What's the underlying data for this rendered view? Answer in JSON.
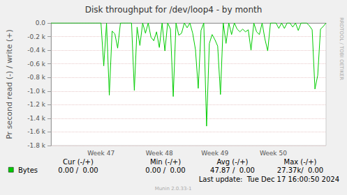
{
  "chart_data": {
    "type": "line",
    "title": "Disk throughput for /dev/loop4 - by month",
    "ylabel": "Pr second read (-) / write (+)",
    "x": [
      null,
      null,
      null,
      null,
      null,
      null,
      null,
      null,
      null,
      null,
      null,
      null,
      null,
      null,
      null,
      null,
      null,
      null,
      "Week 47",
      null,
      null,
      null,
      null,
      null,
      null,
      null,
      null,
      null,
      null,
      null,
      null,
      null,
      null,
      null,
      null,
      null,
      null,
      null,
      null,
      "Week 48",
      null,
      null,
      null,
      null,
      null,
      null,
      null,
      null,
      null,
      null,
      null,
      null,
      null,
      null,
      null,
      null,
      null,
      null,
      null,
      "Week 49",
      null,
      null,
      null,
      null,
      null,
      null,
      null,
      null,
      null,
      null,
      null,
      null,
      null,
      null,
      null,
      null,
      null,
      null,
      null,
      null,
      "Week 50",
      null,
      null,
      null,
      null,
      null,
      null,
      null,
      null,
      null,
      null,
      null,
      null,
      null,
      null,
      null,
      null,
      null,
      null,
      null
    ],
    "series": [
      {
        "name": "Bytes",
        "color": "#00cc00",
        "values": [
          0,
          0,
          0,
          0,
          0,
          0,
          0,
          0,
          0,
          0,
          0,
          0,
          0,
          0,
          0,
          0,
          0,
          0,
          0,
          -630,
          0,
          -1060,
          -120,
          -160,
          -370,
          0,
          0,
          0,
          0,
          0,
          -990,
          -60,
          -330,
          0,
          -150,
          0,
          -210,
          -260,
          -130,
          -360,
          0,
          -410,
          0,
          -90,
          -1080,
          0,
          -180,
          -150,
          0,
          -70,
          0,
          -150,
          -390,
          -960,
          -110,
          0,
          -1515,
          -300,
          -170,
          -245,
          -340,
          -1050,
          0,
          -300,
          0,
          -170,
          0,
          -90,
          -130,
          -90,
          -130,
          -100,
          -400,
          0,
          -130,
          -170,
          0,
          -235,
          -410,
          0,
          0,
          0,
          -80,
          0,
          -80,
          0,
          0,
          -60,
          0,
          -110,
          0,
          0,
          0,
          -40,
          -100,
          -970,
          -770,
          -90,
          -50,
          0
        ]
      }
    ],
    "ylim": [
      -1800,
      0
    ],
    "yticks": [
      {
        "value": -1800,
        "label": "-1.8 k"
      },
      {
        "value": -1600,
        "label": "-1.6 k"
      },
      {
        "value": -1400,
        "label": "-1.4 k"
      },
      {
        "value": -1200,
        "label": "-1.2 k"
      },
      {
        "value": -1000,
        "label": "-1.0 k"
      },
      {
        "value": -800,
        "label": "-0.8 k"
      },
      {
        "value": -600,
        "label": "-0.6 k"
      },
      {
        "value": -400,
        "label": "-0.4 k"
      },
      {
        "value": -200,
        "label": "-0.2 k"
      },
      {
        "value": 0,
        "label": "0.0"
      }
    ],
    "grid": true,
    "stats": {
      "headers": [
        "Cur (-/+)",
        "Min (-/+)",
        "Avg (-/+)",
        "Max (-/+)"
      ],
      "values": [
        "0.00 /  0.00",
        "0.00 /  0.00",
        "47.87 /  0.00",
        "27.37k/  0.00"
      ]
    },
    "annotations": {
      "last_update": "Last update:  Tue Dec 17 16:00:50 2024",
      "footer": "Munin 2.0.33-1",
      "watermark": "RRDTOOL / TOBI OETIKER"
    }
  }
}
